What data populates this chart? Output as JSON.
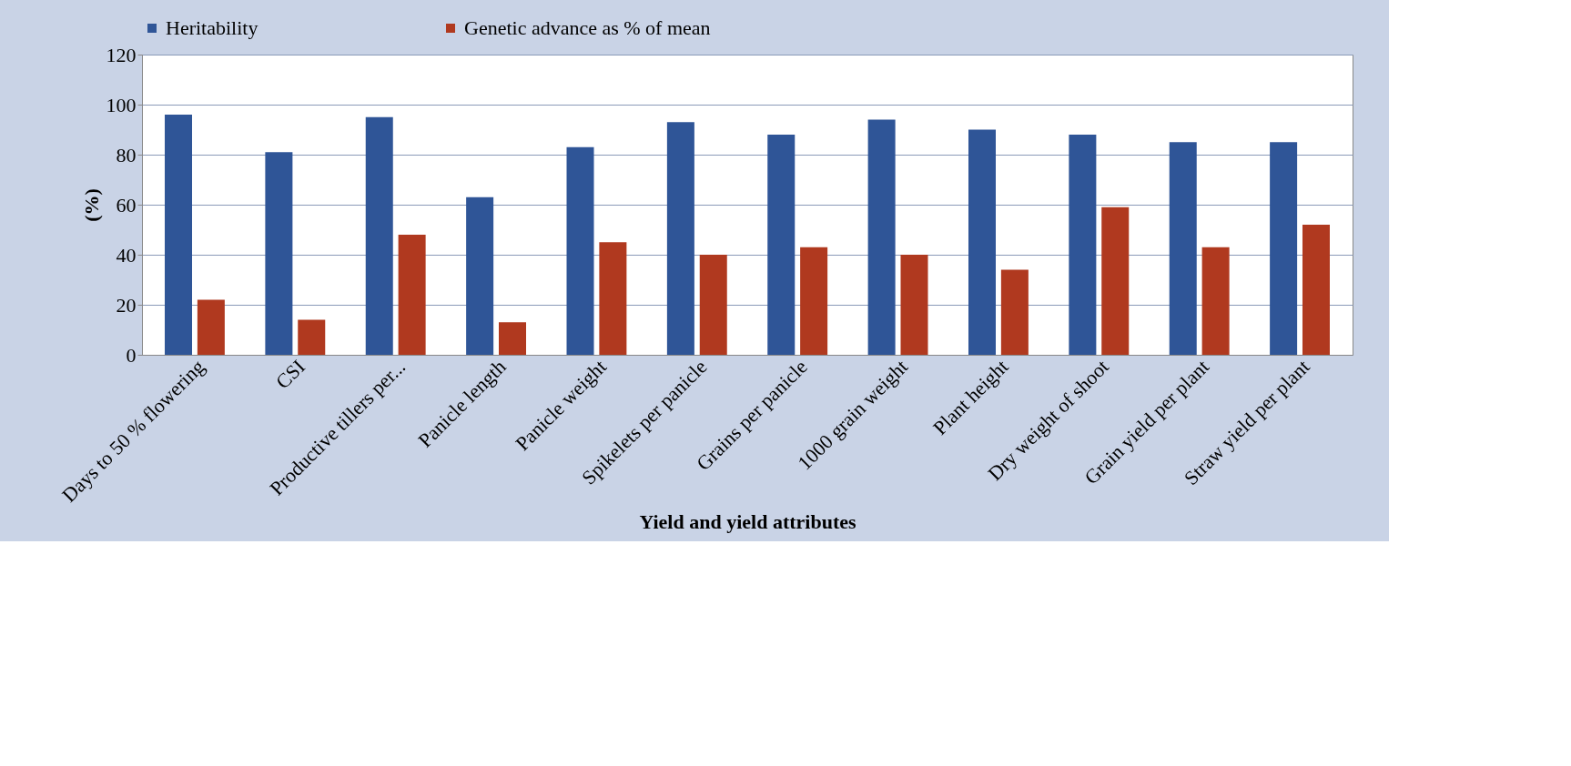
{
  "chart_data": {
    "type": "bar",
    "xlabel": "Yield and yield attributes",
    "ylabel": "(%)",
    "categories": [
      "Days to 50 %  flowering",
      "CSI",
      "Productive tillers per...",
      "Panicle length",
      "Panicle weight",
      "Spikelets per panicle",
      "Grains per panicle",
      "1000 grain weight",
      "Plant height",
      "Dry weight of shoot",
      "Grain yield per plant",
      "Straw yield per  plant"
    ],
    "series": [
      {
        "name": "Heritability",
        "color": "#2f5597",
        "values": [
          96,
          81,
          95,
          63,
          83,
          93,
          88,
          94,
          90,
          88,
          85,
          85
        ]
      },
      {
        "name": "Genetic advance as % of mean",
        "color": "#b0391f",
        "values": [
          22,
          14,
          48,
          13,
          45,
          40,
          43,
          40,
          34,
          59,
          43,
          52
        ]
      }
    ],
    "ylim": [
      0,
      120
    ],
    "yticks": [
      0,
      20,
      40,
      60,
      80,
      100,
      120
    ],
    "grid": "y",
    "legend": "top"
  }
}
